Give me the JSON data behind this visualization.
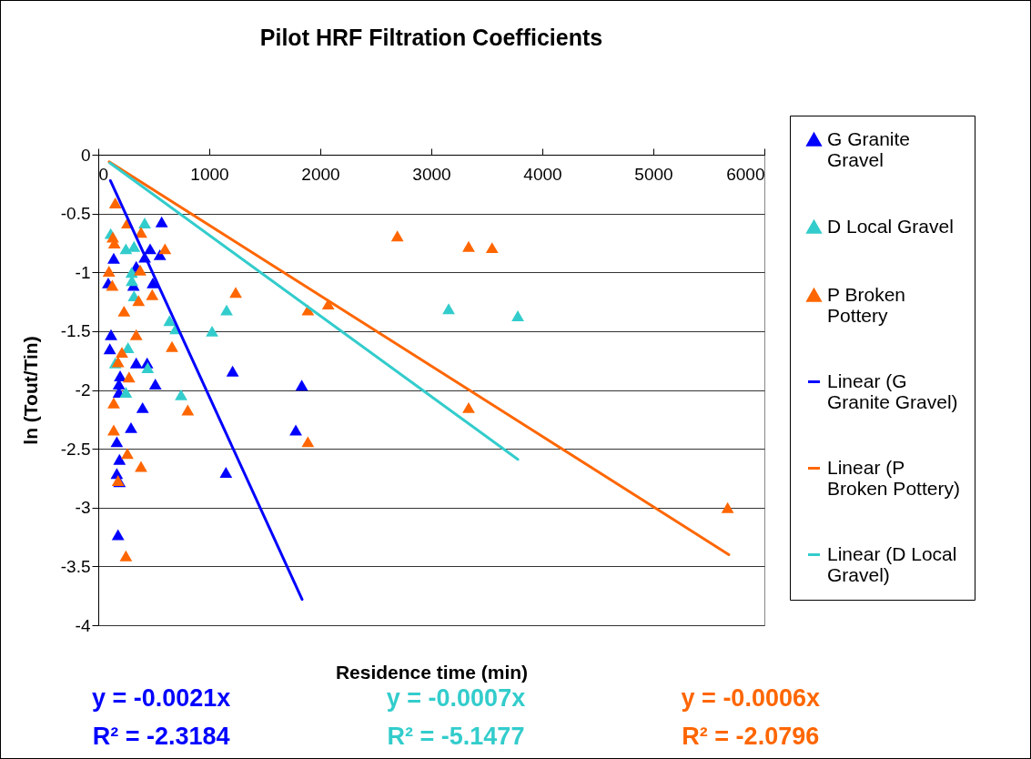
{
  "chart_data": {
    "type": "scatter",
    "title": "Pilot HRF Filtration Coefficients",
    "xlabel": "Residence time (min)",
    "ylabel": "ln (Tout/Tin)",
    "xlim": [
      0,
      6000
    ],
    "xticks": [
      0,
      1000,
      2000,
      3000,
      4000,
      5000,
      6000
    ],
    "ylim": [
      -4,
      0
    ],
    "yticks": [
      -4,
      -3.5,
      -3,
      -2.5,
      -2,
      -1.5,
      -1,
      -0.5,
      0
    ],
    "grid": "y",
    "legend": "right",
    "marker": "triangle",
    "series": [
      {
        "name": "G Granite Gravel",
        "color": "#0000ff",
        "x": [
          571,
          467,
          555,
          418,
          139,
          342,
          492,
          90,
          317,
          115,
          104,
          342,
          440,
          1210,
          197,
          514,
          186,
          186,
          399,
          295,
          167,
          191,
          167,
          191,
          1150,
          178,
          1833,
          1779
        ],
        "values": [
          -0.57,
          -0.8,
          -0.85,
          -0.87,
          -0.88,
          -0.95,
          -1.09,
          -1.09,
          -1.11,
          -1.53,
          -1.65,
          -1.77,
          -1.77,
          -1.84,
          -1.88,
          -1.95,
          -1.95,
          -2.02,
          -2.15,
          -2.32,
          -2.44,
          -2.59,
          -2.71,
          -2.78,
          -2.7,
          -3.23,
          -1.96,
          -2.34
        ]
      },
      {
        "name": "D Local Gravel",
        "color": "#33cccc",
        "x": [
          418,
          112,
          249,
          322,
          301,
          303,
          322,
          642,
          697,
          1156,
          1025,
          268,
          153,
          445,
          249,
          746,
          3156,
          3779
        ],
        "values": [
          -0.58,
          -0.67,
          -0.8,
          -0.78,
          -1.0,
          -1.07,
          -1.2,
          -1.41,
          -1.48,
          -1.32,
          -1.5,
          -1.64,
          -1.77,
          -1.81,
          -2.02,
          -2.04,
          -1.31,
          -1.37
        ]
      },
      {
        "name": "P Broken Pottery",
        "color": "#ff6600",
        "x": [
          153,
          262,
          385,
          131,
          145,
          601,
          96,
          377,
          126,
          486,
          363,
          1238,
          232,
          342,
          664,
          213,
          178,
          277,
          139,
          806,
          139,
          262,
          385,
          178,
          249,
          2694,
          3336,
          3547,
          1888,
          2071,
          3336,
          1888,
          5669
        ],
        "values": [
          -0.41,
          -0.58,
          -0.66,
          -0.7,
          -0.75,
          -0.8,
          -0.99,
          -0.98,
          -1.11,
          -1.19,
          -1.24,
          -1.17,
          -1.33,
          -1.53,
          -1.63,
          -1.68,
          -1.76,
          -1.89,
          -2.11,
          -2.17,
          -2.34,
          -2.54,
          -2.65,
          -2.77,
          -3.41,
          -0.69,
          -0.78,
          -0.79,
          -1.32,
          -1.27,
          -2.15,
          -2.44,
          -3.0
        ]
      },
      {
        "name": "Linear (G Granite Gravel)",
        "color": "#0000ff",
        "type": "line",
        "marker": "none",
        "x": [
          109,
          1836
        ],
        "values": [
          -0.22,
          -3.78
        ]
      },
      {
        "name": "Linear (P Broken Pottery)",
        "color": "#ff6600",
        "type": "line",
        "marker": "none",
        "x": [
          98,
          5680
        ],
        "values": [
          -0.06,
          -3.4
        ]
      },
      {
        "name": "Linear (D Local Gravel)",
        "color": "#33cccc",
        "type": "line",
        "marker": "none",
        "x": [
          104,
          3779
        ],
        "values": [
          -0.07,
          -2.59
        ]
      }
    ],
    "annotations": [
      "y = -0.0021x",
      "R² = -2.3184",
      "y = -0.0007x",
      "R² = -5.1477",
      "y = -0.0006x",
      "R² = -2.0796"
    ]
  }
}
